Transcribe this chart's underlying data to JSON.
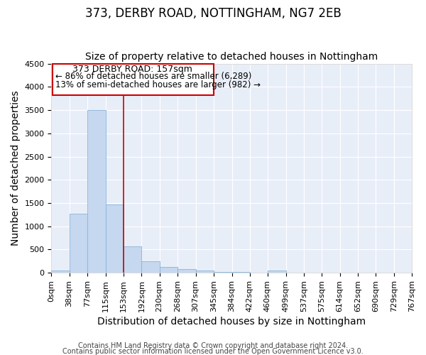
{
  "title1": "373, DERBY ROAD, NOTTINGHAM, NG7 2EB",
  "title2": "Size of property relative to detached houses in Nottingham",
  "xlabel": "Distribution of detached houses by size in Nottingham",
  "ylabel": "Number of detached properties",
  "bar_color": "#c5d8f0",
  "bar_edge_color": "#8ab4d8",
  "vline_color": "#cc0000",
  "vline_x": 153,
  "annotation_line1": "373 DERBY ROAD: 157sqm",
  "annotation_line2": "← 86% of detached houses are smaller (6,289)",
  "annotation_line3": "13% of semi-detached houses are larger (982) →",
  "bin_edges": [
    0,
    38,
    77,
    115,
    153,
    192,
    230,
    268,
    307,
    345,
    384,
    422,
    460,
    499,
    537,
    575,
    614,
    652,
    690,
    729,
    767
  ],
  "bar_heights": [
    50,
    1275,
    3500,
    1475,
    575,
    250,
    130,
    80,
    50,
    20,
    20,
    0,
    50,
    0,
    0,
    0,
    0,
    0,
    0,
    0
  ],
  "ylim": [
    0,
    4500
  ],
  "yticks": [
    0,
    500,
    1000,
    1500,
    2000,
    2500,
    3000,
    3500,
    4000,
    4500
  ],
  "xlim": [
    0,
    767
  ],
  "background_color": "#e8eef8",
  "grid_color": "#ffffff",
  "footer1": "Contains HM Land Registry data © Crown copyright and database right 2024.",
  "footer2": "Contains public sector information licensed under the Open Government Licence v3.0.",
  "title_fontsize": 12,
  "subtitle_fontsize": 10,
  "tick_fontsize": 8,
  "label_fontsize": 10,
  "footer_fontsize": 7
}
